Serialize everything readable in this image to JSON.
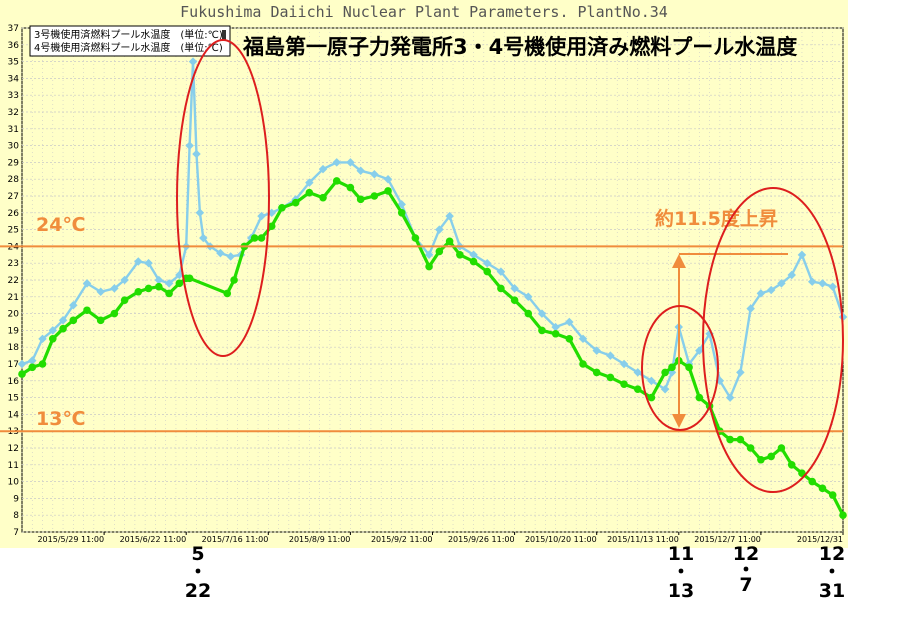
{
  "window_title": "Fukushima Daiichi Nuclear Plant Parameters. PlantNo.34",
  "legend": [
    {
      "label": "3号機使用済燃料プール水温度　(単位:℃)",
      "color": "#87ceeb"
    },
    {
      "label": "4号機使用済燃料プール水温度　(単位:℃)",
      "color": "#22dd00"
    }
  ],
  "annotations": {
    "headline": "福島第一原子力発電所3・4号機使用済み燃料プール水温度",
    "line_24": "24℃",
    "line_13": "13℃",
    "rise": "約11.5度上昇",
    "date_labels": [
      {
        "top": "5",
        "bottom": "22"
      },
      {
        "top": "11",
        "bottom": "13"
      },
      {
        "top": "12",
        "bottom": "7"
      },
      {
        "top": "12",
        "bottom": "31"
      }
    ]
  },
  "colors": {
    "plot_bg": "#ffffc8",
    "page_bg": "#ffffff",
    "grid": "#c8c8c8",
    "accent_orange": "#f08c3c",
    "circle_red": "#dd1e1e",
    "unit3": "#87ceeb",
    "unit4": "#22dd00"
  },
  "chart_data": {
    "type": "line",
    "title": "Fukushima Daiichi Nuclear Plant Parameters. PlantNo.34",
    "xlabel": "",
    "ylabel": "",
    "x_type": "date",
    "xlim": [
      "2015-05-05",
      "2015-12-31"
    ],
    "ylim": [
      7,
      37
    ],
    "yticks": [
      7,
      8,
      9,
      10,
      11,
      12,
      13,
      14,
      15,
      16,
      17,
      18,
      19,
      20,
      21,
      22,
      23,
      24,
      25,
      26,
      27,
      28,
      29,
      30,
      31,
      32,
      33,
      34,
      35,
      36,
      37
    ],
    "xtick_labels": [
      "2015/5/29 11:00",
      "2015/6/22 11:00",
      "2015/7/16 11:00",
      "2015/8/9 11:00",
      "2015/9/2 11:00",
      "2015/9/26 11:00",
      "2015/10/20 11:00",
      "2015/11/13 11:00",
      "2015/12/7 11:00",
      "2015/12/31"
    ],
    "xtick_dates": [
      "2015-05-29",
      "2015-06-22",
      "2015-07-16",
      "2015-08-09",
      "2015-09-02",
      "2015-09-26",
      "2015-10-20",
      "2015-11-13",
      "2015-12-07",
      "2015-12-31"
    ],
    "grid": true,
    "legend_position": "top-left",
    "reference_lines": [
      24,
      13
    ],
    "series": [
      {
        "name": "3号機使用済燃料プール水温度　(単位:℃)",
        "x": [
          "2015-05-05",
          "2015-05-08",
          "2015-05-11",
          "2015-05-14",
          "2015-05-17",
          "2015-05-20",
          "2015-05-24",
          "2015-05-28",
          "2015-06-01",
          "2015-06-04",
          "2015-06-08",
          "2015-06-11",
          "2015-06-14",
          "2015-06-17",
          "2015-06-20",
          "2015-06-22",
          "2015-06-23",
          "2015-06-24",
          "2015-06-25",
          "2015-06-26",
          "2015-06-27",
          "2015-06-29",
          "2015-07-02",
          "2015-07-05",
          "2015-07-08",
          "2015-07-11",
          "2015-07-14",
          "2015-07-17",
          "2015-07-20",
          "2015-07-24",
          "2015-07-28",
          "2015-08-01",
          "2015-08-05",
          "2015-08-09",
          "2015-08-12",
          "2015-08-16",
          "2015-08-20",
          "2015-08-24",
          "2015-08-28",
          "2015-09-01",
          "2015-09-04",
          "2015-09-07",
          "2015-09-10",
          "2015-09-14",
          "2015-09-18",
          "2015-09-22",
          "2015-09-26",
          "2015-09-30",
          "2015-10-04",
          "2015-10-08",
          "2015-10-12",
          "2015-10-16",
          "2015-10-20",
          "2015-10-24",
          "2015-10-28",
          "2015-11-01",
          "2015-11-05",
          "2015-11-09",
          "2015-11-11",
          "2015-11-13",
          "2015-11-16",
          "2015-11-19",
          "2015-11-22",
          "2015-11-25",
          "2015-11-28",
          "2015-12-01",
          "2015-12-04",
          "2015-12-07",
          "2015-12-10",
          "2015-12-13",
          "2015-12-16",
          "2015-12-19",
          "2015-12-22",
          "2015-12-25",
          "2015-12-28",
          "2015-12-31"
        ],
        "values": [
          17.0,
          17.2,
          18.5,
          19.0,
          19.6,
          20.5,
          21.8,
          21.3,
          21.5,
          22.0,
          23.1,
          23.0,
          22.0,
          21.8,
          22.3,
          24.0,
          30.0,
          35.0,
          29.5,
          26.0,
          24.5,
          24.0,
          23.6,
          23.4,
          23.5,
          24.5,
          25.8,
          26.0,
          26.3,
          26.8,
          27.8,
          28.6,
          29.0,
          29.0,
          28.5,
          28.3,
          28.0,
          26.5,
          24.5,
          23.5,
          25.0,
          25.8,
          24.0,
          23.5,
          23.0,
          22.5,
          21.5,
          21.0,
          20.0,
          19.2,
          19.5,
          18.5,
          17.8,
          17.5,
          17.0,
          16.5,
          16.0,
          15.5,
          16.5,
          19.2,
          17.0,
          17.8,
          18.8,
          16.0,
          15.0,
          16.5,
          20.3,
          21.2,
          21.4,
          21.8,
          22.3,
          23.5,
          21.9,
          21.8,
          21.6,
          19.8
        ]
      },
      {
        "name": "4号機使用済燃料プール水温度　(単位:℃)",
        "x": [
          "2015-05-05",
          "2015-05-08",
          "2015-05-11",
          "2015-05-14",
          "2015-05-17",
          "2015-05-20",
          "2015-05-24",
          "2015-05-28",
          "2015-06-01",
          "2015-06-04",
          "2015-06-08",
          "2015-06-11",
          "2015-06-14",
          "2015-06-17",
          "2015-06-20",
          "2015-06-22",
          "2015-06-23",
          "2015-07-04",
          "2015-07-06",
          "2015-07-09",
          "2015-07-12",
          "2015-07-14",
          "2015-07-17",
          "2015-07-20",
          "2015-07-24",
          "2015-07-28",
          "2015-08-01",
          "2015-08-05",
          "2015-08-09",
          "2015-08-12",
          "2015-08-16",
          "2015-08-20",
          "2015-08-24",
          "2015-08-28",
          "2015-09-01",
          "2015-09-04",
          "2015-09-07",
          "2015-09-10",
          "2015-09-14",
          "2015-09-18",
          "2015-09-22",
          "2015-09-26",
          "2015-09-30",
          "2015-10-04",
          "2015-10-08",
          "2015-10-12",
          "2015-10-16",
          "2015-10-20",
          "2015-10-24",
          "2015-10-28",
          "2015-11-01",
          "2015-11-05",
          "2015-11-09",
          "2015-11-11",
          "2015-11-13",
          "2015-11-16",
          "2015-11-19",
          "2015-11-22",
          "2015-11-25",
          "2015-11-28",
          "2015-12-01",
          "2015-12-04",
          "2015-12-07",
          "2015-12-10",
          "2015-12-13",
          "2015-12-16",
          "2015-12-19",
          "2015-12-22",
          "2015-12-25",
          "2015-12-28",
          "2015-12-31"
        ],
        "values": [
          16.4,
          16.8,
          17.0,
          18.5,
          19.1,
          19.6,
          20.2,
          19.6,
          20.0,
          20.8,
          21.3,
          21.5,
          21.6,
          21.2,
          21.8,
          22.1,
          22.1,
          21.2,
          22.0,
          24.0,
          24.5,
          24.5,
          25.2,
          26.3,
          26.6,
          27.2,
          26.9,
          27.9,
          27.5,
          26.8,
          27.0,
          27.3,
          26.0,
          24.5,
          22.8,
          23.7,
          24.3,
          23.5,
          23.1,
          22.5,
          21.5,
          20.8,
          20.0,
          19.0,
          18.8,
          18.5,
          17.0,
          16.5,
          16.2,
          15.8,
          15.5,
          15.0,
          16.5,
          16.8,
          17.2,
          16.8,
          15.0,
          14.5,
          13.0,
          12.5,
          12.5,
          12.0,
          11.3,
          11.5,
          12.0,
          11.0,
          10.5,
          10.0,
          9.6,
          9.2,
          8.0
        ]
      }
    ]
  }
}
